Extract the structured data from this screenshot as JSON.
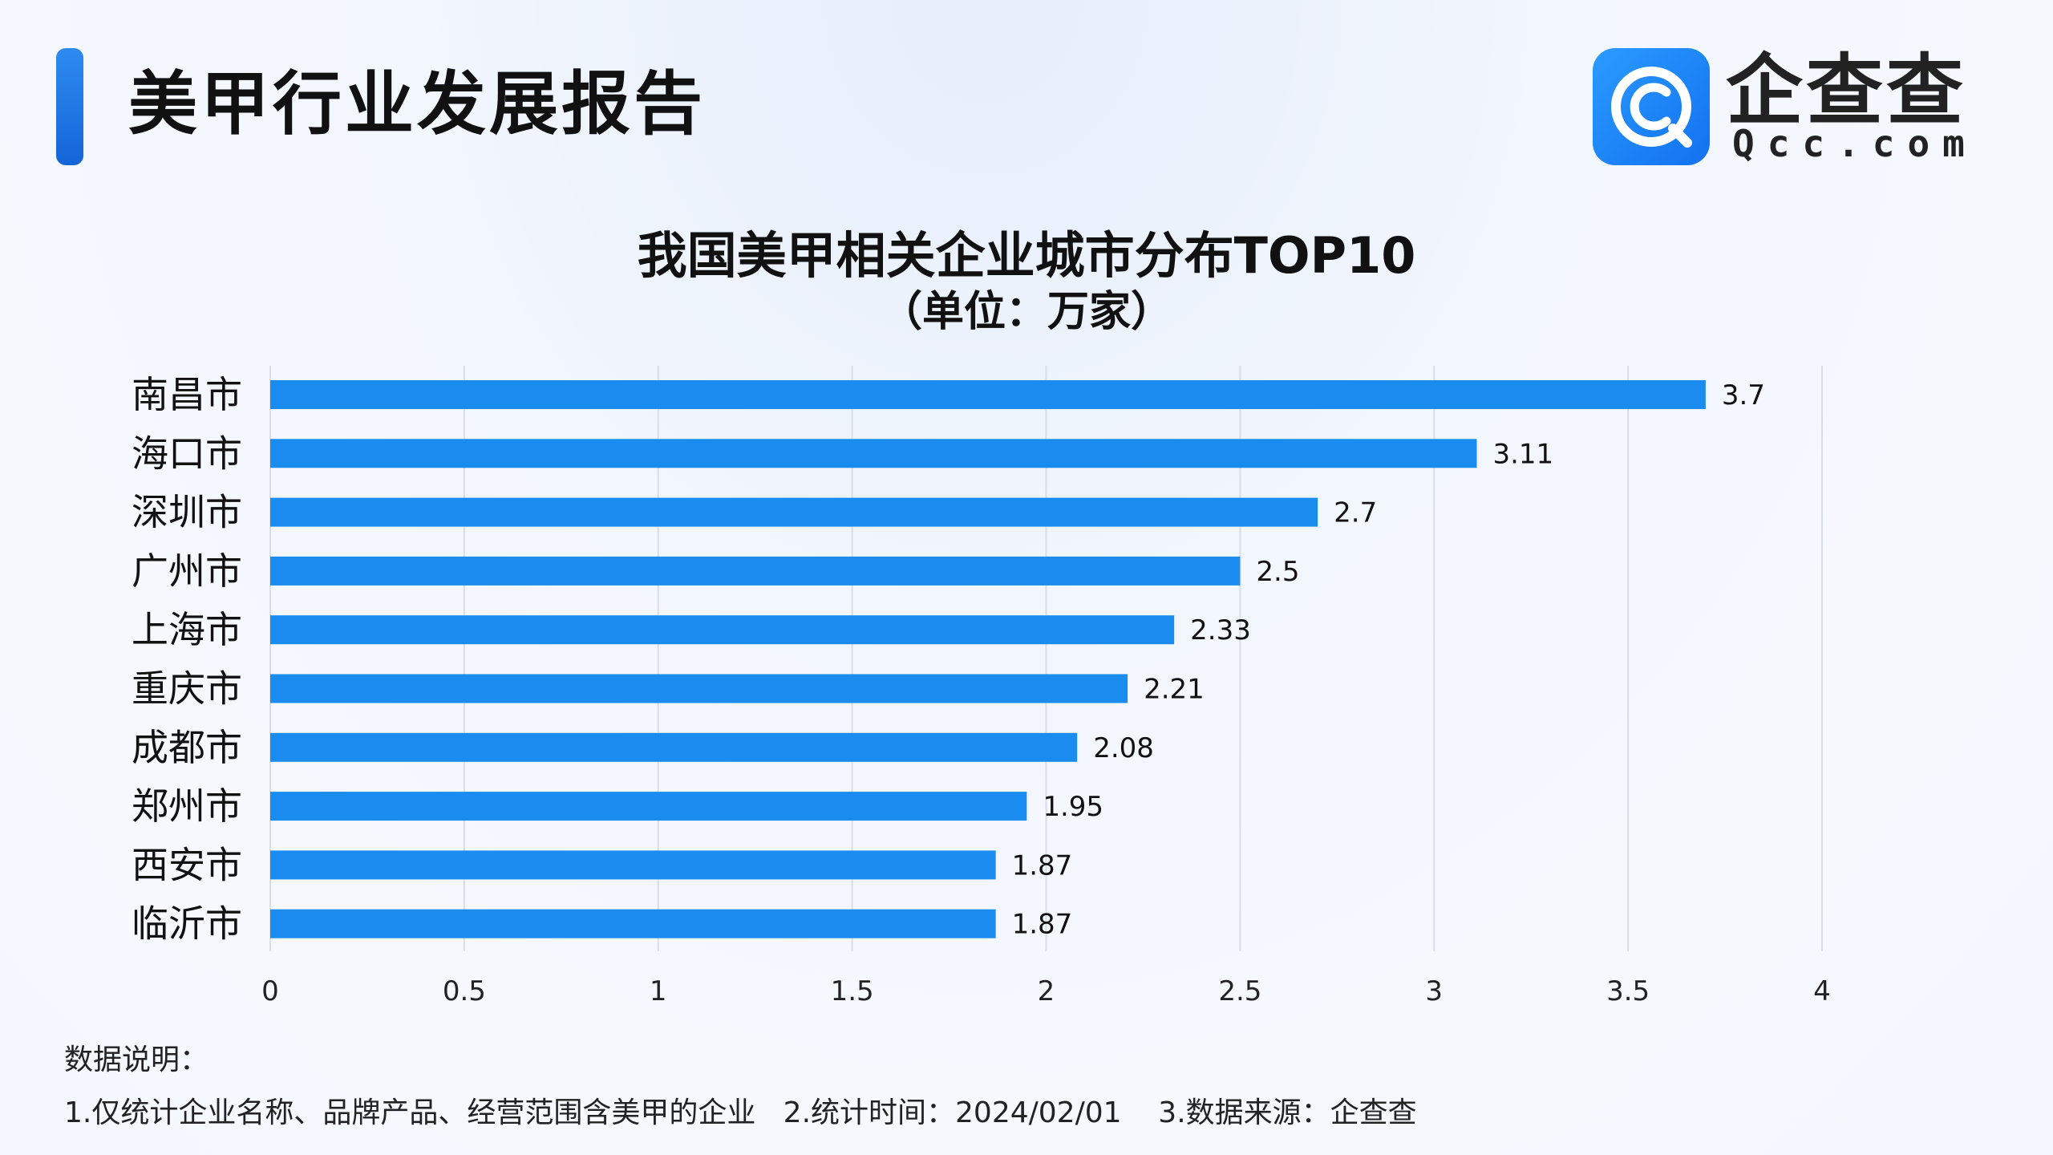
{
  "header": {
    "title": "美甲行业发展报告"
  },
  "brand": {
    "name": "企查查",
    "domain": "Qcc.com",
    "logo": "qcc-logo-icon",
    "color": "#1876ec"
  },
  "notes": {
    "title": "数据说明：",
    "body": "1.仅统计企业名称、品牌产品、经营范围含美甲的企业   2.统计时间：2024/02/01    3.数据来源：企查查"
  },
  "chart_data": {
    "type": "bar",
    "orientation": "horizontal",
    "title": "我国美甲相关企业城市分布TOP10",
    "subtitle": "（单位：万家）",
    "categories": [
      "南昌市",
      "海口市",
      "深圳市",
      "广州市",
      "上海市",
      "重庆市",
      "成都市",
      "郑州市",
      "西安市",
      "临沂市"
    ],
    "values": [
      3.7,
      3.11,
      2.7,
      2.5,
      2.33,
      2.21,
      2.08,
      1.95,
      1.87,
      1.87
    ],
    "value_labels": [
      "3.7",
      "3.11",
      "2.7",
      "2.5",
      "2.33",
      "2.21",
      "2.08",
      "1.95",
      "1.87",
      "1.87"
    ],
    "xlim": [
      0,
      4
    ],
    "ticks": [
      0,
      0.5,
      1,
      1.5,
      2,
      2.5,
      3,
      3.5,
      4
    ],
    "tick_labels": [
      "0",
      "0.5",
      "1",
      "1.5",
      "2",
      "2.5",
      "3",
      "3.5",
      "4"
    ],
    "grid": true,
    "legend": "none",
    "bar_color": "#1a8cf0"
  }
}
